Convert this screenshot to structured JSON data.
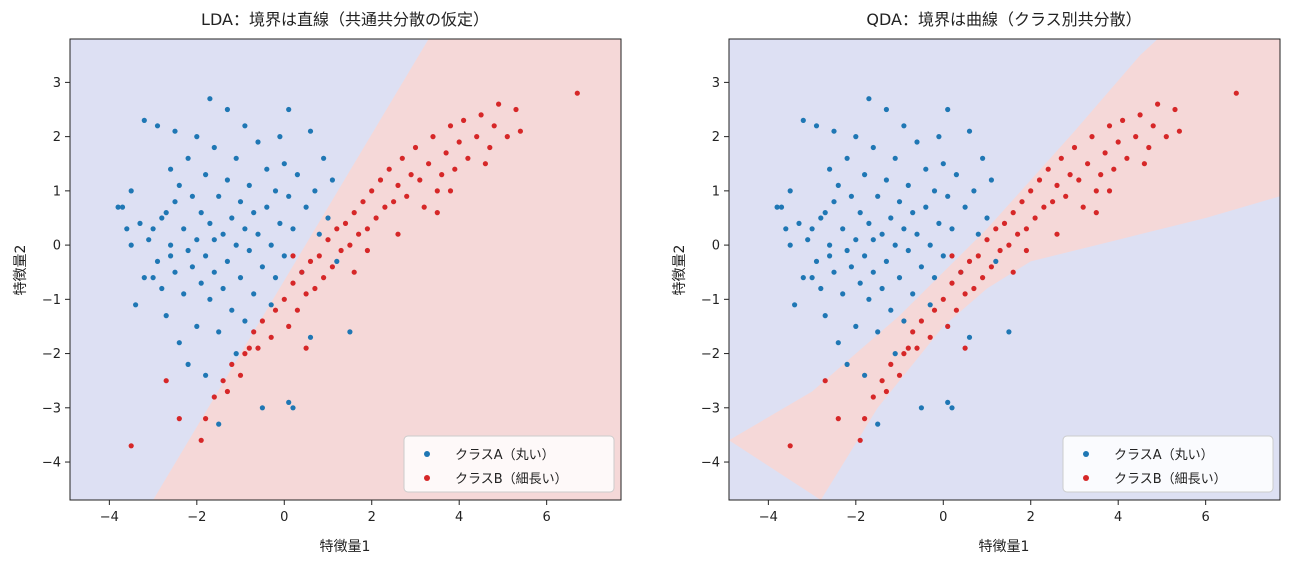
{
  "colors": {
    "class_a": "#1f77b4",
    "class_b": "#d62728",
    "region_a": "#dde0f3",
    "region_b": "#f5d8d8",
    "legend_border": "#cccccc"
  },
  "chart_data": [
    {
      "type": "scatter",
      "title": "LDA：境界は直線（共通共分散の仮定）",
      "xlabel": "特徴量1",
      "ylabel": "特徴量2",
      "xlim": [
        -4.9,
        7.7
      ],
      "ylim": [
        -4.7,
        3.8
      ],
      "xticks": [
        -4,
        -2,
        0,
        2,
        4,
        6
      ],
      "yticks": [
        -4,
        -3,
        -2,
        -1,
        0,
        1,
        2,
        3
      ],
      "legend_position": "lower-right",
      "decision_boundary": {
        "kind": "linear",
        "through": [
          [
            -3.0,
            -4.7
          ],
          [
            3.3,
            3.8
          ]
        ],
        "region_b_side": "lower-right"
      },
      "series": [
        {
          "name": "クラスA（丸い）",
          "color_key": "class_a"
        },
        {
          "name": "クラスB（細長い）",
          "color_key": "class_b"
        }
      ]
    },
    {
      "type": "scatter",
      "title": "QDA：境界は曲線（クラス別共分散）",
      "xlabel": "特徴量1",
      "ylabel": "特徴量2",
      "xlim": [
        -4.9,
        7.7
      ],
      "ylim": [
        -4.7,
        3.8
      ],
      "xticks": [
        -4,
        -2,
        0,
        2,
        4,
        6
      ],
      "yticks": [
        -4,
        -3,
        -2,
        -1,
        0,
        1,
        2,
        3
      ],
      "legend_position": "lower-right",
      "decision_boundary": {
        "kind": "quadratic",
        "upper_curve": [
          [
            -4.9,
            -3.6
          ],
          [
            -3.0,
            -2.7
          ],
          [
            -1.0,
            -1.3
          ],
          [
            1.0,
            0.3
          ],
          [
            3.0,
            2.1
          ],
          [
            4.5,
            3.5
          ],
          [
            4.9,
            3.8
          ]
        ],
        "lower_curve": [
          [
            -2.8,
            -4.7
          ],
          [
            -1.5,
            -3.0
          ],
          [
            0.0,
            -1.5
          ],
          [
            1.0,
            -0.8
          ],
          [
            2.0,
            -0.3
          ],
          [
            4.0,
            0.1
          ],
          [
            6.0,
            0.5
          ],
          [
            7.7,
            0.9
          ]
        ]
      },
      "series": [
        {
          "name": "クラスA（丸い）",
          "color_key": "class_a"
        },
        {
          "name": "クラスB（細長い）",
          "color_key": "class_b"
        }
      ]
    }
  ],
  "points": {
    "class_a": [
      [
        -3.8,
        0.7
      ],
      [
        -3.7,
        0.7
      ],
      [
        -3.6,
        0.3
      ],
      [
        -3.5,
        1.0
      ],
      [
        -3.5,
        0.0
      ],
      [
        -3.4,
        -1.1
      ],
      [
        -3.3,
        0.4
      ],
      [
        -3.2,
        2.3
      ],
      [
        -3.2,
        -0.6
      ],
      [
        -3.1,
        0.1
      ],
      [
        -3.0,
        0.3
      ],
      [
        -3.0,
        -0.6
      ],
      [
        -2.9,
        2.2
      ],
      [
        -2.9,
        -0.3
      ],
      [
        -2.8,
        0.5
      ],
      [
        -2.8,
        -0.8
      ],
      [
        -2.7,
        0.6
      ],
      [
        -2.7,
        -1.3
      ],
      [
        -2.6,
        1.4
      ],
      [
        -2.6,
        -0.2
      ],
      [
        -2.5,
        2.1
      ],
      [
        -2.5,
        0.8
      ],
      [
        -2.5,
        -0.5
      ],
      [
        -2.4,
        1.1
      ],
      [
        -2.4,
        -1.8
      ],
      [
        -2.3,
        0.3
      ],
      [
        -2.3,
        -0.9
      ],
      [
        -2.2,
        1.6
      ],
      [
        -2.2,
        -0.1
      ],
      [
        -2.2,
        -2.2
      ],
      [
        -2.1,
        0.9
      ],
      [
        -2.1,
        -0.4
      ],
      [
        -2.0,
        2.0
      ],
      [
        -2.0,
        0.1
      ],
      [
        -2.0,
        -1.5
      ],
      [
        -1.9,
        0.6
      ],
      [
        -1.9,
        -0.7
      ],
      [
        -1.8,
        1.3
      ],
      [
        -1.8,
        -0.2
      ],
      [
        -1.8,
        -2.4
      ],
      [
        -1.7,
        2.7
      ],
      [
        -1.7,
        0.4
      ],
      [
        -1.7,
        -1.0
      ],
      [
        -1.6,
        1.8
      ],
      [
        -1.6,
        -0.5
      ],
      [
        -1.5,
        0.9
      ],
      [
        -1.5,
        -1.6
      ],
      [
        -1.5,
        -3.3
      ],
      [
        -1.4,
        0.2
      ],
      [
        -1.4,
        -0.8
      ],
      [
        -1.3,
        2.5
      ],
      [
        -1.3,
        1.2
      ],
      [
        -1.3,
        -0.3
      ],
      [
        -1.2,
        0.5
      ],
      [
        -1.2,
        -1.2
      ],
      [
        -1.1,
        1.6
      ],
      [
        -1.1,
        0.0
      ],
      [
        -1.1,
        -2.0
      ],
      [
        -1.0,
        0.8
      ],
      [
        -1.0,
        -0.6
      ],
      [
        -0.9,
        2.2
      ],
      [
        -0.9,
        0.3
      ],
      [
        -0.9,
        -1.4
      ],
      [
        -0.8,
        1.1
      ],
      [
        -0.8,
        -0.1
      ],
      [
        -0.7,
        0.6
      ],
      [
        -0.7,
        -0.9
      ],
      [
        -0.6,
        1.9
      ],
      [
        -0.6,
        0.2
      ],
      [
        -0.5,
        -3.0
      ],
      [
        -0.5,
        -0.4
      ],
      [
        -0.4,
        1.4
      ],
      [
        -0.4,
        0.7
      ],
      [
        -0.3,
        -1.1
      ],
      [
        -0.3,
        0.0
      ],
      [
        -0.2,
        1.0
      ],
      [
        -0.2,
        -0.6
      ],
      [
        -0.1,
        2.0
      ],
      [
        -0.1,
        0.4
      ],
      [
        0.0,
        1.5
      ],
      [
        0.0,
        -0.2
      ],
      [
        0.1,
        2.5
      ],
      [
        0.1,
        -2.9
      ],
      [
        0.1,
        0.9
      ],
      [
        0.2,
        -3.0
      ],
      [
        0.2,
        0.3
      ],
      [
        0.3,
        1.3
      ],
      [
        0.4,
        -0.5
      ],
      [
        0.5,
        0.7
      ],
      [
        0.6,
        2.1
      ],
      [
        0.6,
        -1.7
      ],
      [
        0.7,
        1.0
      ],
      [
        0.8,
        0.2
      ],
      [
        0.9,
        1.6
      ],
      [
        1.0,
        0.5
      ],
      [
        1.1,
        1.2
      ],
      [
        1.2,
        -0.3
      ],
      [
        1.5,
        -1.6
      ],
      [
        -2.6,
        0.0
      ],
      [
        -1.6,
        0.1
      ]
    ],
    "class_b": [
      [
        -3.5,
        -3.7
      ],
      [
        -2.7,
        -2.5
      ],
      [
        -2.4,
        -3.2
      ],
      [
        -1.9,
        -3.6
      ],
      [
        -1.8,
        -3.2
      ],
      [
        -1.6,
        -2.8
      ],
      [
        -1.4,
        -2.5
      ],
      [
        -1.2,
        -2.2
      ],
      [
        -1.0,
        -2.4
      ],
      [
        -0.9,
        -2.0
      ],
      [
        -0.7,
        -1.6
      ],
      [
        -0.6,
        -1.9
      ],
      [
        -0.5,
        -1.4
      ],
      [
        -0.3,
        -1.7
      ],
      [
        -0.2,
        -1.2
      ],
      [
        0.0,
        -1.0
      ],
      [
        0.1,
        -1.5
      ],
      [
        0.2,
        -0.7
      ],
      [
        0.3,
        -1.2
      ],
      [
        0.4,
        -0.5
      ],
      [
        0.5,
        -0.9
      ],
      [
        0.6,
        -0.3
      ],
      [
        0.7,
        -0.8
      ],
      [
        0.8,
        -0.2
      ],
      [
        0.9,
        -0.6
      ],
      [
        1.0,
        0.1
      ],
      [
        1.1,
        -0.4
      ],
      [
        1.2,
        0.3
      ],
      [
        1.3,
        -0.1
      ],
      [
        1.4,
        0.4
      ],
      [
        1.5,
        0.0
      ],
      [
        1.6,
        0.6
      ],
      [
        1.7,
        0.2
      ],
      [
        1.8,
        0.8
      ],
      [
        1.9,
        0.3
      ],
      [
        2.0,
        1.0
      ],
      [
        2.1,
        0.5
      ],
      [
        2.2,
        1.2
      ],
      [
        2.3,
        0.7
      ],
      [
        2.4,
        1.4
      ],
      [
        2.5,
        0.8
      ],
      [
        2.6,
        1.1
      ],
      [
        2.7,
        1.6
      ],
      [
        2.8,
        0.9
      ],
      [
        2.9,
        1.3
      ],
      [
        3.0,
        1.8
      ],
      [
        3.1,
        1.2
      ],
      [
        3.2,
        0.7
      ],
      [
        3.3,
        1.5
      ],
      [
        3.4,
        2.0
      ],
      [
        3.5,
        1.0
      ],
      [
        3.6,
        1.3
      ],
      [
        3.7,
        1.7
      ],
      [
        3.8,
        2.2
      ],
      [
        3.9,
        1.4
      ],
      [
        4.0,
        1.9
      ],
      [
        4.1,
        2.3
      ],
      [
        4.2,
        1.6
      ],
      [
        4.4,
        2.0
      ],
      [
        4.5,
        2.4
      ],
      [
        4.7,
        1.8
      ],
      [
        4.8,
        2.2
      ],
      [
        4.9,
        2.6
      ],
      [
        5.1,
        2.0
      ],
      [
        5.3,
        2.5
      ],
      [
        5.4,
        2.1
      ],
      [
        6.7,
        2.8
      ],
      [
        -0.8,
        -1.9
      ],
      [
        0.2,
        -0.2
      ],
      [
        1.6,
        -0.5
      ],
      [
        2.6,
        0.2
      ],
      [
        3.5,
        0.6
      ],
      [
        4.6,
        1.5
      ],
      [
        -1.3,
        -2.7
      ],
      [
        0.5,
        -1.9
      ],
      [
        1.9,
        -0.1
      ],
      [
        3.8,
        1.0
      ]
    ]
  }
}
